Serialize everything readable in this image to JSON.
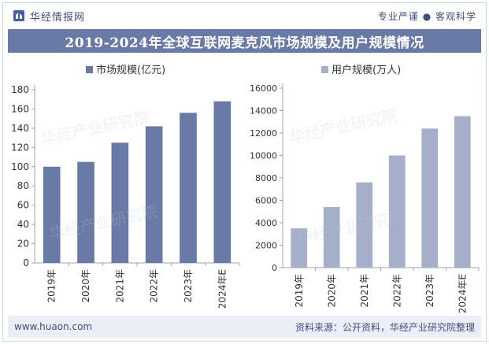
{
  "header": {
    "brand": "华经情报网",
    "tagline": "专业严谨 ● 客观科学"
  },
  "title": "2019-2024年全球互联网麦克风市场规模及用户规模情况",
  "footer": {
    "site": "www.huaon.com",
    "source": "资料来源：公开资料，华经产业研究院整理"
  },
  "watermark": "华经产业研究院",
  "chart_data": [
    {
      "type": "bar",
      "legend": "市场规模(亿元)",
      "categories": [
        "2019年",
        "2020年",
        "2021年",
        "2022年",
        "2023年",
        "2024年E"
      ],
      "values": [
        100,
        105,
        125,
        142,
        156,
        168
      ],
      "ylim": [
        0,
        180
      ],
      "yticks": [
        0,
        20,
        40,
        60,
        80,
        100,
        120,
        140,
        160,
        180
      ],
      "color": "#6a7aa6"
    },
    {
      "type": "bar",
      "legend": "用户规模(万人)",
      "categories": [
        "2019年",
        "2020年",
        "2021年",
        "2022年",
        "2023年",
        "2024年E"
      ],
      "values": [
        3500,
        5400,
        7600,
        10000,
        12400,
        13500
      ],
      "ylim": [
        0,
        16000
      ],
      "yticks": [
        0,
        2000,
        4000,
        6000,
        8000,
        10000,
        12000,
        14000,
        16000
      ],
      "color": "#a5afca"
    }
  ]
}
